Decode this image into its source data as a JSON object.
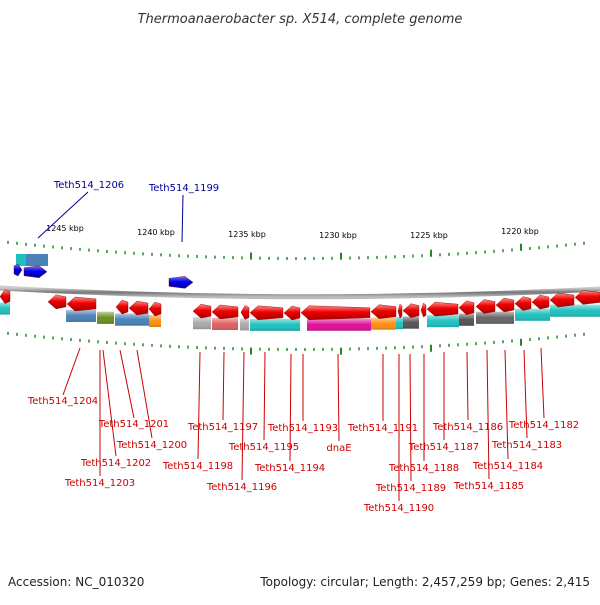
{
  "title": "Thermoanaerobacter sp. X514, complete genome",
  "footer": {
    "accession": "Accession: NC_010320",
    "topology": "Topology: circular; Length: 2,457,259 bp; Genes: 2,415"
  },
  "scale_ticks": [
    "1245 kbp",
    "1240 kbp",
    "1235 kbp",
    "1230 kbp",
    "1225 kbp",
    "1220 kbp"
  ],
  "colors": {
    "forward_gene": "#0000ee",
    "reverse_gene": "#ee0000",
    "forward_label": "#000099",
    "reverse_label": "#cc0000",
    "backbone": "#888888",
    "tick": "#228822"
  },
  "forward_labels": [
    "Teth514_1206",
    "Teth514_1199"
  ],
  "reverse_labels": [
    "Teth514_1204",
    "Teth514_1201",
    "Teth514_1200",
    "Teth514_1202",
    "Teth514_1203",
    "Teth514_1197",
    "Teth514_1198",
    "Teth514_1195",
    "Teth514_1196",
    "Teth514_1193",
    "Teth514_1194",
    "dnaE",
    "Teth514_1191",
    "Teth514_1188",
    "Teth514_1189",
    "Teth514_1190",
    "Teth514_1187",
    "Teth514_1186",
    "Teth514_1185",
    "Teth514_1184",
    "Teth514_1183",
    "Teth514_1182"
  ]
}
